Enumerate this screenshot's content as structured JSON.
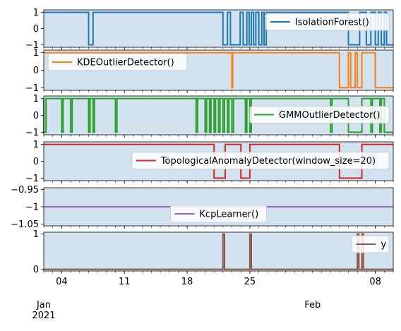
{
  "chart_data": {
    "type": "line",
    "x_range": [
      "2021-01-02",
      "2021-02-10"
    ],
    "x_ticks": [
      {
        "date": "2021-01-04",
        "label": "04"
      },
      {
        "date": "2021-01-11",
        "label": "11"
      },
      {
        "date": "2021-01-18",
        "label": "18"
      },
      {
        "date": "2021-01-25",
        "label": "25"
      },
      {
        "date": "2021-02-08",
        "label": "08"
      }
    ],
    "x_period_labels": [
      {
        "date": "2021-01-02",
        "lines": [
          "Jan",
          "2021"
        ]
      },
      {
        "date": "2021-02-01",
        "lines": [
          "Feb"
        ]
      }
    ],
    "shading_color": "#d2e2ef",
    "panels": [
      {
        "name": "IsolationForest()",
        "color": "#1f77b4",
        "ylim": [
          -1.15,
          1.15
        ],
        "yticks": [
          1,
          0,
          -1
        ],
        "legend_position": "upper right",
        "points": [
          [
            "2021-01-02",
            1
          ],
          [
            "2021-01-07",
            1
          ],
          [
            "2021-01-07",
            -1
          ],
          [
            "2021-01-07T12:00",
            -1
          ],
          [
            "2021-01-07T12:00",
            1
          ],
          [
            "2021-01-22",
            1
          ],
          [
            "2021-01-22",
            -1
          ],
          [
            "2021-01-22T12:00",
            -1
          ],
          [
            "2021-01-22T12:00",
            1
          ],
          [
            "2021-01-22T20:00",
            1
          ],
          [
            "2021-01-22T20:00",
            -1
          ],
          [
            "2021-01-23T22:00",
            -1
          ],
          [
            "2021-01-23T22:00",
            1
          ],
          [
            "2021-01-24T06:00",
            1
          ],
          [
            "2021-01-24T06:00",
            -1
          ],
          [
            "2021-01-24T16:00",
            -1
          ],
          [
            "2021-01-24T16:00",
            1
          ],
          [
            "2021-01-24T22:00",
            1
          ],
          [
            "2021-01-24T22:00",
            -1
          ],
          [
            "2021-01-25T04:00",
            -1
          ],
          [
            "2021-01-25T04:00",
            1
          ],
          [
            "2021-01-25T10:00",
            1
          ],
          [
            "2021-01-25T10:00",
            -1
          ],
          [
            "2021-01-25T16:00",
            -1
          ],
          [
            "2021-01-25T16:00",
            1
          ],
          [
            "2021-01-26",
            1
          ],
          [
            "2021-01-26",
            -1
          ],
          [
            "2021-01-26T08:00",
            -1
          ],
          [
            "2021-01-26T08:00",
            1
          ],
          [
            "2021-01-26T14:00",
            1
          ],
          [
            "2021-01-26T14:00",
            -1
          ],
          [
            "2021-01-26T20:00",
            -1
          ],
          [
            "2021-01-26T20:00",
            1
          ],
          [
            "2021-02-05",
            1
          ],
          [
            "2021-02-05",
            -1
          ],
          [
            "2021-02-06T06:00",
            -1
          ],
          [
            "2021-02-06T06:00",
            1
          ],
          [
            "2021-02-07",
            1
          ],
          [
            "2021-02-07",
            -1
          ],
          [
            "2021-02-07T12:00",
            -1
          ],
          [
            "2021-02-07T12:00",
            1
          ],
          [
            "2021-02-08",
            1
          ],
          [
            "2021-02-08",
            -1
          ],
          [
            "2021-02-08T08:00",
            -1
          ],
          [
            "2021-02-08T08:00",
            1
          ],
          [
            "2021-02-08T16:00",
            1
          ],
          [
            "2021-02-08T16:00",
            -1
          ],
          [
            "2021-02-09",
            -1
          ],
          [
            "2021-02-09",
            1
          ],
          [
            "2021-02-09T06:00",
            1
          ],
          [
            "2021-02-09T06:00",
            -1
          ],
          [
            "2021-02-10",
            -1
          ]
        ]
      },
      {
        "name": "KDEOutlierDetector()",
        "color": "#ff7f0e",
        "ylim": [
          -1.15,
          1.15
        ],
        "yticks": [
          1,
          0,
          -1
        ],
        "legend_position": "upper left",
        "points": [
          [
            "2021-01-02",
            1
          ],
          [
            "2021-01-23",
            1
          ],
          [
            "2021-01-23",
            -1
          ],
          [
            "2021-01-23T02:00",
            -1
          ],
          [
            "2021-01-23T02:00",
            1
          ],
          [
            "2021-02-04",
            1
          ],
          [
            "2021-02-04",
            -1
          ],
          [
            "2021-02-05",
            -1
          ],
          [
            "2021-02-05",
            1
          ],
          [
            "2021-02-05T06:00",
            1
          ],
          [
            "2021-02-05T06:00",
            -1
          ],
          [
            "2021-02-05T18:00",
            -1
          ],
          [
            "2021-02-05T18:00",
            1
          ],
          [
            "2021-02-06",
            1
          ],
          [
            "2021-02-06",
            -1
          ],
          [
            "2021-02-06T12:00",
            -1
          ],
          [
            "2021-02-06T12:00",
            1
          ],
          [
            "2021-02-08",
            1
          ],
          [
            "2021-02-08",
            -1
          ],
          [
            "2021-02-10",
            -1
          ]
        ]
      },
      {
        "name": "GMMOutlierDetector()",
        "color": "#2ca02c",
        "ylim": [
          -1.15,
          1.15
        ],
        "yticks": [
          1,
          0,
          -1
        ],
        "legend_position": "center right",
        "points": [
          [
            "2021-01-02",
            1
          ],
          [
            "2021-01-02",
            -1
          ],
          [
            "2021-01-02T06:00",
            -1
          ],
          [
            "2021-01-02T06:00",
            1
          ],
          [
            "2021-01-04",
            1
          ],
          [
            "2021-01-04",
            -1
          ],
          [
            "2021-01-04T04:00",
            -1
          ],
          [
            "2021-01-04T04:00",
            1
          ],
          [
            "2021-01-05",
            1
          ],
          [
            "2021-01-05",
            -1
          ],
          [
            "2021-01-05T04:00",
            -1
          ],
          [
            "2021-01-05T04:00",
            1
          ],
          [
            "2021-01-07",
            1
          ],
          [
            "2021-01-07",
            -1
          ],
          [
            "2021-01-07T04:00",
            -1
          ],
          [
            "2021-01-07T04:00",
            1
          ],
          [
            "2021-01-07T12:00",
            1
          ],
          [
            "2021-01-07T12:00",
            -1
          ],
          [
            "2021-01-07T16:00",
            -1
          ],
          [
            "2021-01-07T16:00",
            1
          ],
          [
            "2021-01-10",
            1
          ],
          [
            "2021-01-10",
            -1
          ],
          [
            "2021-01-10T04:00",
            -1
          ],
          [
            "2021-01-10T04:00",
            1
          ],
          [
            "2021-01-19",
            1
          ],
          [
            "2021-01-19",
            -1
          ],
          [
            "2021-01-19T04:00",
            -1
          ],
          [
            "2021-01-19T04:00",
            1
          ],
          [
            "2021-01-20",
            1
          ],
          [
            "2021-01-20",
            -1
          ],
          [
            "2021-01-20T04:00",
            -1
          ],
          [
            "2021-01-20T04:00",
            1
          ],
          [
            "2021-01-20T12:00",
            1
          ],
          [
            "2021-01-20T12:00",
            -1
          ],
          [
            "2021-01-20T16:00",
            -1
          ],
          [
            "2021-01-20T16:00",
            1
          ],
          [
            "2021-01-21",
            1
          ],
          [
            "2021-01-21",
            -1
          ],
          [
            "2021-01-21T04:00",
            -1
          ],
          [
            "2021-01-21T04:00",
            1
          ],
          [
            "2021-01-21T12:00",
            1
          ],
          [
            "2021-01-21T12:00",
            -1
          ],
          [
            "2021-01-21T16:00",
            -1
          ],
          [
            "2021-01-21T16:00",
            1
          ],
          [
            "2021-01-22",
            1
          ],
          [
            "2021-01-22",
            -1
          ],
          [
            "2021-01-22T04:00",
            -1
          ],
          [
            "2021-01-22T04:00",
            1
          ],
          [
            "2021-01-22T12:00",
            1
          ],
          [
            "2021-01-22T12:00",
            -1
          ],
          [
            "2021-01-22T16:00",
            -1
          ],
          [
            "2021-01-22T16:00",
            1
          ],
          [
            "2021-01-23",
            1
          ],
          [
            "2021-01-23",
            -1
          ],
          [
            "2021-01-23T04:00",
            -1
          ],
          [
            "2021-01-23T04:00",
            1
          ],
          [
            "2021-01-24T12:00",
            1
          ],
          [
            "2021-01-24T12:00",
            -1
          ],
          [
            "2021-01-24T16:00",
            -1
          ],
          [
            "2021-01-24T16:00",
            1
          ],
          [
            "2021-01-25",
            1
          ],
          [
            "2021-01-25",
            -1
          ],
          [
            "2021-01-25T04:00",
            -1
          ],
          [
            "2021-01-25T04:00",
            1
          ],
          [
            "2021-02-03",
            1
          ],
          [
            "2021-02-03",
            -1
          ],
          [
            "2021-02-03T04:00",
            -1
          ],
          [
            "2021-02-03T04:00",
            1
          ],
          [
            "2021-02-05",
            1
          ],
          [
            "2021-02-05",
            -1
          ],
          [
            "2021-02-06T12:00",
            -1
          ],
          [
            "2021-02-06T12:00",
            1
          ],
          [
            "2021-02-07T12:00",
            1
          ],
          [
            "2021-02-07T12:00",
            -1
          ],
          [
            "2021-02-07T16:00",
            -1
          ],
          [
            "2021-02-07T16:00",
            1
          ],
          [
            "2021-02-08T12:00",
            1
          ],
          [
            "2021-02-08T12:00",
            -1
          ],
          [
            "2021-02-08T16:00",
            -1
          ],
          [
            "2021-02-08T16:00",
            1
          ],
          [
            "2021-02-09",
            1
          ],
          [
            "2021-02-09",
            -1
          ],
          [
            "2021-02-10",
            -1
          ]
        ]
      },
      {
        "name": "TopologicalAnomalyDetector(window_size=20)",
        "color": "#d62728",
        "ylim": [
          -1.15,
          1.15
        ],
        "yticks": [
          1,
          0,
          -1
        ],
        "legend_position": "center right",
        "points": [
          [
            "2021-01-02",
            1
          ],
          [
            "2021-01-21",
            1
          ],
          [
            "2021-01-21",
            -1
          ],
          [
            "2021-01-22T06:00",
            -1
          ],
          [
            "2021-01-22T06:00",
            1
          ],
          [
            "2021-01-24",
            1
          ],
          [
            "2021-01-24",
            -1
          ],
          [
            "2021-01-25",
            -1
          ],
          [
            "2021-01-25",
            1
          ],
          [
            "2021-02-04",
            1
          ],
          [
            "2021-02-04",
            -1
          ],
          [
            "2021-02-06T12:00",
            -1
          ],
          [
            "2021-02-06T12:00",
            1
          ],
          [
            "2021-02-10",
            1
          ]
        ]
      },
      {
        "name": "KcpLearner()",
        "color": "#9467bd",
        "ylim": [
          -1.055,
          -0.945
        ],
        "yticks": [
          -0.95,
          -1.0,
          -1.05
        ],
        "legend_position": "lower center",
        "points": [
          [
            "2021-01-02",
            -1
          ],
          [
            "2021-02-10",
            -1
          ]
        ]
      },
      {
        "name": "y",
        "color": "#8c564b",
        "ylim": [
          -0.05,
          1.05
        ],
        "yticks": [
          1,
          0
        ],
        "legend_position": "upper right",
        "points": [
          [
            "2021-01-02",
            0
          ],
          [
            "2021-01-22",
            0
          ],
          [
            "2021-01-22",
            1
          ],
          [
            "2021-01-22T04:00",
            1
          ],
          [
            "2021-01-22T04:00",
            0
          ],
          [
            "2021-01-25",
            0
          ],
          [
            "2021-01-25",
            1
          ],
          [
            "2021-01-25T04:00",
            1
          ],
          [
            "2021-01-25T04:00",
            0
          ],
          [
            "2021-02-06",
            0
          ],
          [
            "2021-02-06",
            1
          ],
          [
            "2021-02-06T04:00",
            1
          ],
          [
            "2021-02-06T04:00",
            0
          ],
          [
            "2021-02-06T12:00",
            0
          ],
          [
            "2021-02-06T12:00",
            1
          ],
          [
            "2021-02-06T16:00",
            1
          ],
          [
            "2021-02-06T16:00",
            0
          ],
          [
            "2021-02-10",
            0
          ]
        ]
      }
    ]
  }
}
